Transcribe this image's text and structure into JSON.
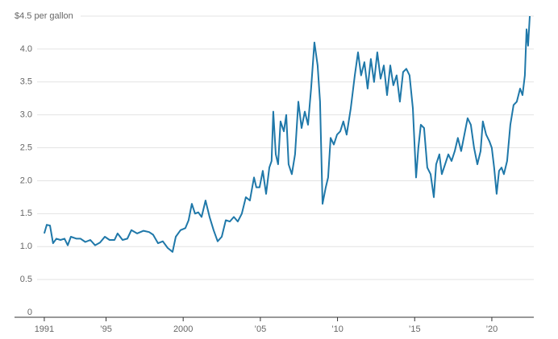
{
  "chart_data": {
    "type": "line",
    "color": "#1f78a9",
    "grid": true,
    "x": [
      1991.0,
      1991.16,
      1991.37,
      1991.57,
      1991.78,
      1992.05,
      1992.31,
      1992.52,
      1992.72,
      1993.09,
      1993.35,
      1993.66,
      1993.98,
      1994.29,
      1994.61,
      1994.92,
      1995.23,
      1995.55,
      1995.75,
      1996.07,
      1996.38,
      1996.64,
      1997.01,
      1997.43,
      1997.79,
      1998.05,
      1998.37,
      1998.68,
      1998.99,
      1999.31,
      1999.52,
      1999.83,
      2000.14,
      2000.35,
      2000.56,
      2000.77,
      2000.98,
      2001.19,
      2001.45,
      2001.71,
      2001.97,
      2002.23,
      2002.5,
      2002.76,
      2003.02,
      2003.28,
      2003.54,
      2003.8,
      2004.06,
      2004.32,
      2004.59,
      2004.74,
      2004.95,
      2005.16,
      2005.37,
      2005.58,
      2005.73,
      2005.84,
      2006.0,
      2006.15,
      2006.31,
      2006.52,
      2006.68,
      2006.83,
      2007.04,
      2007.25,
      2007.46,
      2007.67,
      2007.88,
      2008.09,
      2008.29,
      2008.5,
      2008.71,
      2008.87,
      2009.03,
      2009.24,
      2009.39,
      2009.55,
      2009.76,
      2009.97,
      2010.18,
      2010.38,
      2010.59,
      2010.86,
      2011.12,
      2011.33,
      2011.53,
      2011.74,
      2011.95,
      2012.16,
      2012.37,
      2012.58,
      2012.79,
      2013.0,
      2013.21,
      2013.42,
      2013.62,
      2013.83,
      2014.04,
      2014.25,
      2014.46,
      2014.67,
      2014.88,
      2015.09,
      2015.24,
      2015.4,
      2015.61,
      2015.82,
      2016.03,
      2016.24,
      2016.39,
      2016.6,
      2016.76,
      2016.97,
      2017.18,
      2017.39,
      2017.6,
      2017.8,
      2018.01,
      2018.22,
      2018.43,
      2018.64,
      2018.85,
      2019.06,
      2019.27,
      2019.42,
      2019.63,
      2019.84,
      2020.0,
      2020.15,
      2020.31,
      2020.47,
      2020.63,
      2020.78,
      2020.99,
      2021.2,
      2021.41,
      2021.62,
      2021.83,
      2021.99,
      2022.14,
      2022.25,
      2022.35,
      2022.46
    ],
    "values": [
      1.2,
      1.33,
      1.32,
      1.05,
      1.12,
      1.1,
      1.12,
      1.02,
      1.15,
      1.12,
      1.12,
      1.07,
      1.1,
      1.02,
      1.06,
      1.15,
      1.1,
      1.1,
      1.2,
      1.1,
      1.12,
      1.25,
      1.2,
      1.24,
      1.22,
      1.18,
      1.05,
      1.08,
      0.98,
      0.92,
      1.15,
      1.25,
      1.28,
      1.4,
      1.65,
      1.5,
      1.52,
      1.45,
      1.7,
      1.45,
      1.25,
      1.08,
      1.15,
      1.4,
      1.38,
      1.45,
      1.38,
      1.5,
      1.75,
      1.7,
      2.05,
      1.9,
      1.9,
      2.15,
      1.8,
      2.2,
      2.3,
      3.05,
      2.4,
      2.25,
      2.9,
      2.75,
      3.0,
      2.25,
      2.1,
      2.4,
      3.2,
      2.8,
      3.05,
      2.85,
      3.4,
      4.1,
      3.75,
      3.2,
      1.65,
      1.9,
      2.05,
      2.65,
      2.55,
      2.7,
      2.75,
      2.9,
      2.7,
      3.1,
      3.6,
      3.95,
      3.6,
      3.8,
      3.4,
      3.85,
      3.5,
      3.95,
      3.55,
      3.75,
      3.3,
      3.75,
      3.45,
      3.6,
      3.2,
      3.65,
      3.7,
      3.6,
      3.1,
      2.05,
      2.5,
      2.85,
      2.8,
      2.2,
      2.1,
      1.75,
      2.25,
      2.4,
      2.1,
      2.25,
      2.4,
      2.3,
      2.45,
      2.65,
      2.45,
      2.7,
      2.95,
      2.85,
      2.5,
      2.25,
      2.45,
      2.9,
      2.7,
      2.6,
      2.5,
      2.2,
      1.8,
      2.15,
      2.2,
      2.1,
      2.3,
      2.85,
      3.15,
      3.2,
      3.4,
      3.3,
      3.6,
      4.3,
      4.05,
      4.5
    ],
    "xlim": [
      1989.07,
      2022.72
    ],
    "xticks": [
      1991,
      {
        "value": 1995,
        "label": "’95"
      },
      2000,
      {
        "value": 2005,
        "label": "’05"
      },
      {
        "value": 2010,
        "label": "’10"
      },
      {
        "value": 2015,
        "label": "’15"
      },
      {
        "value": 2020,
        "label": "’20"
      }
    ],
    "ylim": [
      0,
      4.5
    ],
    "yticks": [
      0,
      0.5,
      {
        "value": 1,
        "label": "1.0"
      },
      1.5,
      {
        "value": 2,
        "label": "2.0"
      },
      2.5,
      {
        "value": 3,
        "label": "3.0"
      },
      3.5,
      {
        "value": 4,
        "label": "4.0"
      },
      {
        "value": 4.5,
        "label": "$4.5 per gallon"
      }
    ]
  }
}
